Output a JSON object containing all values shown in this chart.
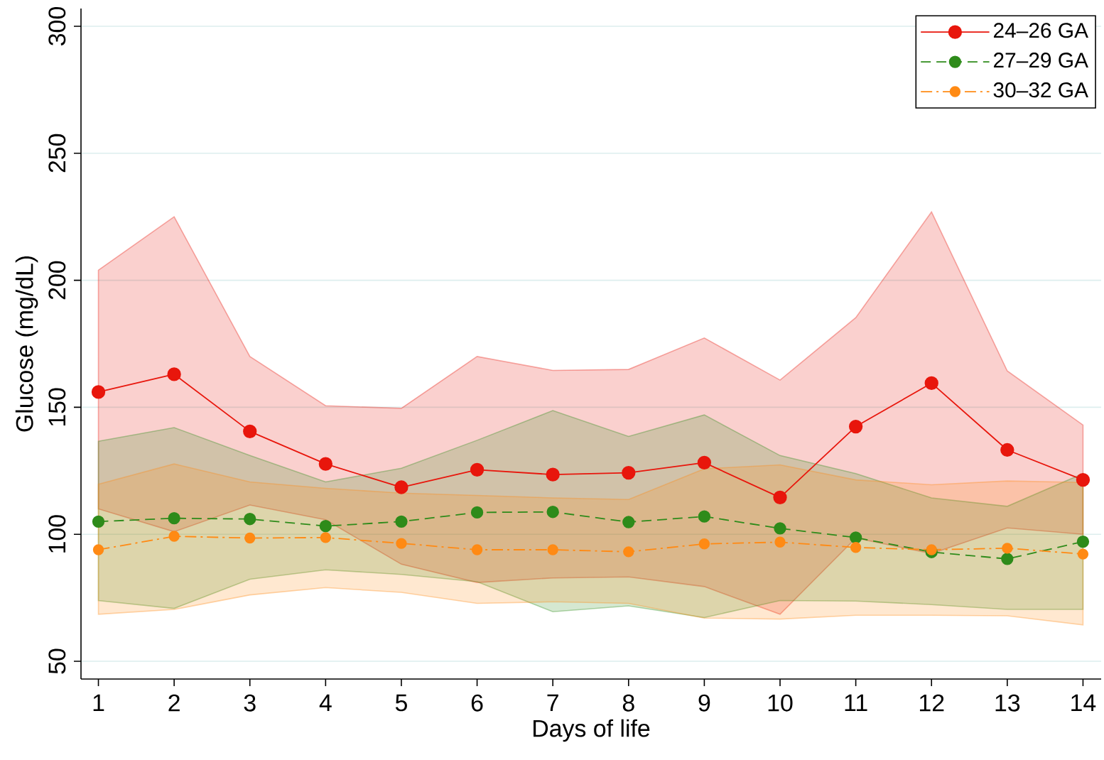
{
  "chart_data": {
    "type": "line",
    "xlabel": "Days of life",
    "ylabel": "Glucose (mg/dL)",
    "x": [
      1,
      2,
      3,
      4,
      5,
      6,
      7,
      8,
      9,
      10,
      11,
      12,
      13,
      14
    ],
    "series": [
      {
        "name": "24–26 GA",
        "color": "#e8160c",
        "line_style": "solid",
        "values": [
          156,
          163,
          140.5,
          127.7,
          118.5,
          125.4,
          123.5,
          124.2,
          128.2,
          114.5,
          142.4,
          159.5,
          133.2,
          121.4
        ],
        "upper": [
          204,
          225,
          170,
          150.6,
          149.6,
          170,
          164.5,
          164.9,
          177.3,
          160.7,
          185.3,
          226.9,
          164.3,
          143
        ],
        "lower": [
          110,
          101,
          111.5,
          105.7,
          88.2,
          81,
          82.8,
          83.2,
          79.4,
          68.5,
          98.5,
          92.4,
          102.5,
          100
        ]
      },
      {
        "name": "27–29 GA",
        "color": "#2e8b1a",
        "line_style": "dashed",
        "values": [
          105,
          106.3,
          106,
          103.2,
          105,
          108.6,
          108.8,
          104.8,
          107,
          102.3,
          98.7,
          93,
          90.3,
          97.1
        ],
        "upper": [
          136.6,
          142,
          131,
          120.6,
          126,
          137,
          148.7,
          138.5,
          147,
          131,
          123.9,
          114.3,
          111,
          123.9
        ],
        "lower": [
          73.9,
          70.8,
          82.3,
          86,
          84.2,
          81.3,
          69.5,
          71.8,
          67.2,
          73.9,
          73.7,
          72.3,
          70.4,
          70.4
        ]
      },
      {
        "name": "30–32 GA",
        "color": "#ff8a14",
        "line_style": "dashdot",
        "values": [
          93.9,
          99.2,
          98.5,
          98.7,
          96.4,
          93.9,
          93.9,
          93.1,
          96.2,
          96.9,
          94.8,
          93.9,
          94.5,
          92.2
        ],
        "upper": [
          119.7,
          127.7,
          120.6,
          118.1,
          116.2,
          115.3,
          114.3,
          113.7,
          125.8,
          127.3,
          121.4,
          119.5,
          121,
          120.4
        ],
        "lower": [
          68.5,
          70.4,
          76.1,
          79,
          77.1,
          72.8,
          73.4,
          72.8,
          67,
          66.6,
          68.1,
          68.1,
          67.9,
          64.3
        ]
      }
    ],
    "xlim": [
      0.77,
      14.24
    ],
    "ylim": [
      43,
      307
    ],
    "xticks": [
      1,
      2,
      3,
      4,
      5,
      6,
      7,
      8,
      9,
      10,
      11,
      12,
      13,
      14
    ],
    "yticks": [
      50,
      100,
      150,
      200,
      250,
      300
    ],
    "grid": "y",
    "legend": "top right",
    "marker": "circle"
  }
}
